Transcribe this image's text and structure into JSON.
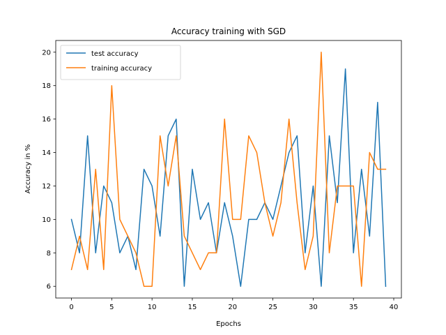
{
  "chart_data": {
    "type": "line",
    "title": "Accuracy training with SGD",
    "xlabel": "Epochs",
    "ylabel": "Accuracy in %",
    "xlim": [
      -1.95,
      40.95
    ],
    "ylim": [
      5.3,
      20.7
    ],
    "xticks": [
      0,
      5,
      10,
      15,
      20,
      25,
      30,
      35,
      40
    ],
    "yticks": [
      6,
      8,
      10,
      12,
      14,
      16,
      18,
      20
    ],
    "grid": false,
    "legend_position": "top-left",
    "x": [
      0,
      1,
      2,
      3,
      4,
      5,
      6,
      7,
      8,
      9,
      10,
      11,
      12,
      13,
      14,
      15,
      16,
      17,
      18,
      19,
      20,
      21,
      22,
      23,
      24,
      25,
      26,
      27,
      28,
      29,
      30,
      31,
      32,
      33,
      34,
      35,
      36,
      37,
      38,
      39
    ],
    "series": [
      {
        "name": "test accuracy",
        "color": "#1f77b4",
        "values": [
          10,
          8,
          15,
          8,
          12,
          11,
          8,
          9,
          7,
          13,
          12,
          9,
          15,
          16,
          6,
          13,
          10,
          11,
          8,
          11,
          9,
          6,
          10,
          10,
          11,
          10,
          12,
          14,
          15,
          8,
          12,
          6,
          15,
          11,
          19,
          8,
          13,
          9,
          17,
          6
        ]
      },
      {
        "name": "training accuracy",
        "color": "#ff7f0e",
        "values": [
          7,
          9,
          7,
          13,
          7,
          18,
          10,
          9,
          8,
          6,
          6,
          15,
          12,
          15,
          9,
          8,
          7,
          8,
          8,
          16,
          10,
          10,
          15,
          14,
          11,
          9,
          11,
          16,
          11,
          7,
          9,
          20,
          8,
          12,
          12,
          12,
          6,
          14,
          13,
          13
        ]
      }
    ]
  }
}
